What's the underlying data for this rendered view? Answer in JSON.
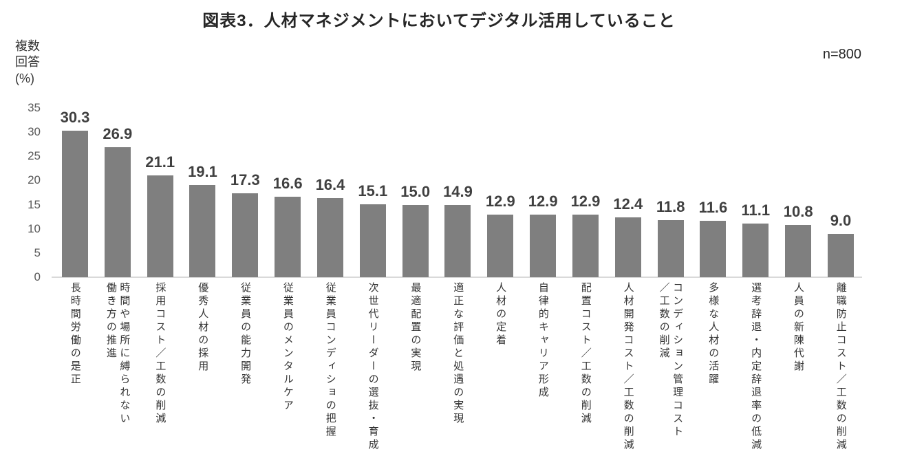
{
  "title": "図表3．人材マネジメントにおいてデジタル活用していること",
  "sample_size": "n=800",
  "y_axis": {
    "unit_label": "複数\n回答\n(%)"
  },
  "colors": {
    "bar": "#7f7f7f",
    "axis_line": "#d9d9d9",
    "tick_label": "#595959",
    "value_label": "#404040",
    "category_label": "#333333",
    "title": "#262626"
  },
  "chart_data": {
    "type": "bar",
    "title": "図表3．人材マネジメントにおいてデジタル活用していること",
    "subtitle": "n=800",
    "ylabel": "複数回答(%)",
    "xlabel": "",
    "ylim": [
      0,
      35
    ],
    "yticks": [
      0,
      5,
      10,
      15,
      20,
      25,
      30,
      35
    ],
    "grid": false,
    "legend": "none",
    "categories": [
      "長時間労働の是正",
      "時間や場所に縛られない\n働き方の推進",
      "採用コスト／工数の削減",
      "優秀人材の採用",
      "従業員の能力開発",
      "従業員のメンタルケア",
      "従業員コンディショの把握",
      "次世代リーダーの選抜・育成",
      "最適配置の実現",
      "適正な評価と処遇の実現",
      "人材の定着",
      "自律的キャリア形成",
      "配置コスト／工数の削減",
      "人材開発コスト／工数の削減",
      "コンディション管理コスト\n／工数の削減",
      "多様な人材の活躍",
      "選考辞退・内定辞退率の低減",
      "人員の新陳代謝",
      "離職防止コスト／工数の削減"
    ],
    "values": [
      30.3,
      26.9,
      21.1,
      19.1,
      17.3,
      16.6,
      16.4,
      15.1,
      15.0,
      14.9,
      12.9,
      12.9,
      12.9,
      12.4,
      11.8,
      11.6,
      11.1,
      10.8,
      9.0
    ]
  }
}
